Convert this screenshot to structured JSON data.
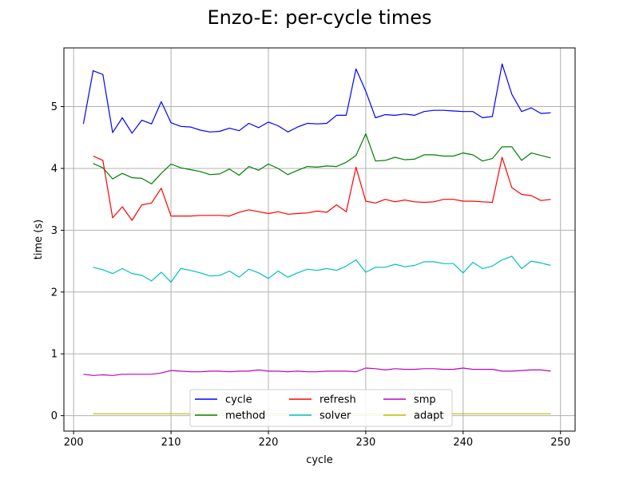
{
  "chart_data": {
    "type": "line",
    "title": "Enzo-E: per-cycle times",
    "xlabel": "cycle",
    "ylabel": "time (s)",
    "xlim": [
      199,
      251.5
    ],
    "ylim": [
      -0.25,
      5.95
    ],
    "xticks": [
      200,
      210,
      220,
      230,
      240,
      250
    ],
    "yticks": [
      0,
      1,
      2,
      3,
      4,
      5
    ],
    "grid": true,
    "legend": {
      "placement": "lower-center",
      "columns": 3
    },
    "series": [
      {
        "name": "cycle",
        "color": "#0000ff",
        "x": [
          201,
          202,
          203,
          204,
          205,
          206,
          207,
          208,
          209,
          210,
          211,
          212,
          213,
          214,
          215,
          216,
          217,
          218,
          219,
          220,
          221,
          222,
          223,
          224,
          225,
          226,
          227,
          228,
          229,
          230,
          231,
          232,
          233,
          234,
          235,
          236,
          237,
          238,
          239,
          240,
          241,
          242,
          243,
          244,
          245,
          246,
          247,
          248,
          249
        ],
        "y": [
          4.72,
          5.58,
          5.52,
          4.58,
          4.82,
          4.57,
          4.78,
          4.72,
          5.08,
          4.74,
          4.68,
          4.67,
          4.62,
          4.59,
          4.6,
          4.65,
          4.61,
          4.73,
          4.66,
          4.75,
          4.69,
          4.59,
          4.67,
          4.73,
          4.72,
          4.73,
          4.86,
          4.86,
          5.61,
          5.25,
          4.82,
          4.87,
          4.86,
          4.88,
          4.86,
          4.92,
          4.94,
          4.94,
          4.93,
          4.92,
          4.92,
          4.82,
          4.84,
          5.69,
          5.2,
          4.92,
          4.98,
          4.89,
          4.9
        ]
      },
      {
        "name": "method",
        "color": "#008000",
        "x": [
          202,
          203,
          204,
          205,
          206,
          207,
          208,
          209,
          210,
          211,
          212,
          213,
          214,
          215,
          216,
          217,
          218,
          219,
          220,
          221,
          222,
          223,
          224,
          225,
          226,
          227,
          228,
          229,
          230,
          231,
          232,
          233,
          234,
          235,
          236,
          237,
          238,
          239,
          240,
          241,
          242,
          243,
          244,
          245,
          246,
          247,
          248,
          249
        ],
        "y": [
          4.08,
          4.01,
          3.83,
          3.92,
          3.85,
          3.84,
          3.75,
          3.92,
          4.07,
          4.01,
          3.98,
          3.95,
          3.9,
          3.91,
          3.99,
          3.89,
          4.03,
          3.97,
          4.07,
          4.0,
          3.9,
          3.97,
          4.03,
          4.02,
          4.04,
          4.03,
          4.1,
          4.21,
          4.56,
          4.12,
          4.13,
          4.18,
          4.14,
          4.15,
          4.22,
          4.22,
          4.2,
          4.2,
          4.25,
          4.22,
          4.12,
          4.16,
          4.35,
          4.35,
          4.13,
          4.25,
          4.21,
          4.17
        ]
      },
      {
        "name": "refresh",
        "color": "#ff0000",
        "x": [
          202,
          203,
          204,
          205,
          206,
          207,
          208,
          209,
          210,
          211,
          212,
          213,
          214,
          215,
          216,
          217,
          218,
          219,
          220,
          221,
          222,
          223,
          224,
          225,
          226,
          227,
          228,
          229,
          230,
          231,
          232,
          233,
          234,
          235,
          236,
          237,
          238,
          239,
          240,
          241,
          242,
          243,
          244,
          245,
          246,
          247,
          248,
          249
        ],
        "y": [
          4.2,
          4.13,
          3.2,
          3.38,
          3.16,
          3.41,
          3.44,
          3.68,
          3.23,
          3.23,
          3.23,
          3.24,
          3.24,
          3.24,
          3.23,
          3.29,
          3.33,
          3.3,
          3.27,
          3.3,
          3.26,
          3.27,
          3.28,
          3.31,
          3.29,
          3.41,
          3.3,
          4.02,
          3.47,
          3.44,
          3.5,
          3.46,
          3.49,
          3.46,
          3.45,
          3.46,
          3.5,
          3.5,
          3.47,
          3.47,
          3.46,
          3.45,
          4.18,
          3.69,
          3.58,
          3.56,
          3.48,
          3.5
        ]
      },
      {
        "name": "solver",
        "color": "#00bfbf",
        "x": [
          202,
          203,
          204,
          205,
          206,
          207,
          208,
          209,
          210,
          211,
          212,
          213,
          214,
          215,
          216,
          217,
          218,
          219,
          220,
          221,
          222,
          223,
          224,
          225,
          226,
          227,
          228,
          229,
          230,
          231,
          232,
          233,
          234,
          235,
          236,
          237,
          238,
          239,
          240,
          241,
          242,
          243,
          244,
          245,
          246,
          247,
          248,
          249
        ],
        "y": [
          2.4,
          2.36,
          2.3,
          2.38,
          2.3,
          2.27,
          2.18,
          2.32,
          2.16,
          2.38,
          2.35,
          2.31,
          2.26,
          2.27,
          2.34,
          2.24,
          2.37,
          2.31,
          2.22,
          2.34,
          2.24,
          2.31,
          2.37,
          2.35,
          2.38,
          2.35,
          2.42,
          2.52,
          2.32,
          2.4,
          2.4,
          2.45,
          2.41,
          2.43,
          2.49,
          2.49,
          2.46,
          2.46,
          2.31,
          2.48,
          2.38,
          2.42,
          2.52,
          2.58,
          2.38,
          2.5,
          2.47,
          2.43
        ]
      },
      {
        "name": "smp",
        "color": "#bf00bf",
        "x": [
          201,
          202,
          203,
          204,
          205,
          206,
          207,
          208,
          209,
          210,
          211,
          212,
          213,
          214,
          215,
          216,
          217,
          218,
          219,
          220,
          221,
          222,
          223,
          224,
          225,
          226,
          227,
          228,
          229,
          230,
          231,
          232,
          233,
          234,
          235,
          236,
          237,
          238,
          239,
          240,
          241,
          242,
          243,
          244,
          245,
          246,
          247,
          248,
          249
        ],
        "y": [
          0.67,
          0.65,
          0.66,
          0.65,
          0.67,
          0.67,
          0.67,
          0.67,
          0.69,
          0.73,
          0.72,
          0.71,
          0.71,
          0.72,
          0.72,
          0.71,
          0.72,
          0.72,
          0.74,
          0.72,
          0.72,
          0.71,
          0.72,
          0.71,
          0.71,
          0.72,
          0.72,
          0.72,
          0.71,
          0.77,
          0.76,
          0.74,
          0.76,
          0.75,
          0.75,
          0.76,
          0.76,
          0.75,
          0.75,
          0.77,
          0.75,
          0.75,
          0.75,
          0.72,
          0.72,
          0.73,
          0.74,
          0.74,
          0.72
        ]
      },
      {
        "name": "adapt",
        "color": "#bfbf00",
        "x": [
          202,
          203,
          204,
          205,
          206,
          207,
          208,
          209,
          210,
          211,
          212,
          213,
          214,
          215,
          216,
          217,
          218,
          219,
          220,
          221,
          222,
          223,
          224,
          225,
          226,
          227,
          228,
          229,
          230,
          231,
          232,
          233,
          234,
          235,
          236,
          237,
          238,
          239,
          240,
          241,
          242,
          243,
          244,
          245,
          246,
          247,
          248,
          249
        ],
        "y": [
          0.03,
          0.03,
          0.03,
          0.03,
          0.03,
          0.03,
          0.03,
          0.03,
          0.03,
          0.03,
          0.03,
          0.03,
          0.03,
          0.03,
          0.03,
          0.03,
          0.03,
          0.03,
          0.03,
          0.03,
          0.03,
          0.03,
          0.03,
          0.03,
          0.03,
          0.03,
          0.03,
          0.03,
          0.03,
          0.03,
          0.03,
          0.03,
          0.03,
          0.03,
          0.03,
          0.03,
          0.03,
          0.03,
          0.03,
          0.03,
          0.03,
          0.03,
          0.03,
          0.03,
          0.03,
          0.03,
          0.03,
          0.03
        ]
      }
    ]
  }
}
